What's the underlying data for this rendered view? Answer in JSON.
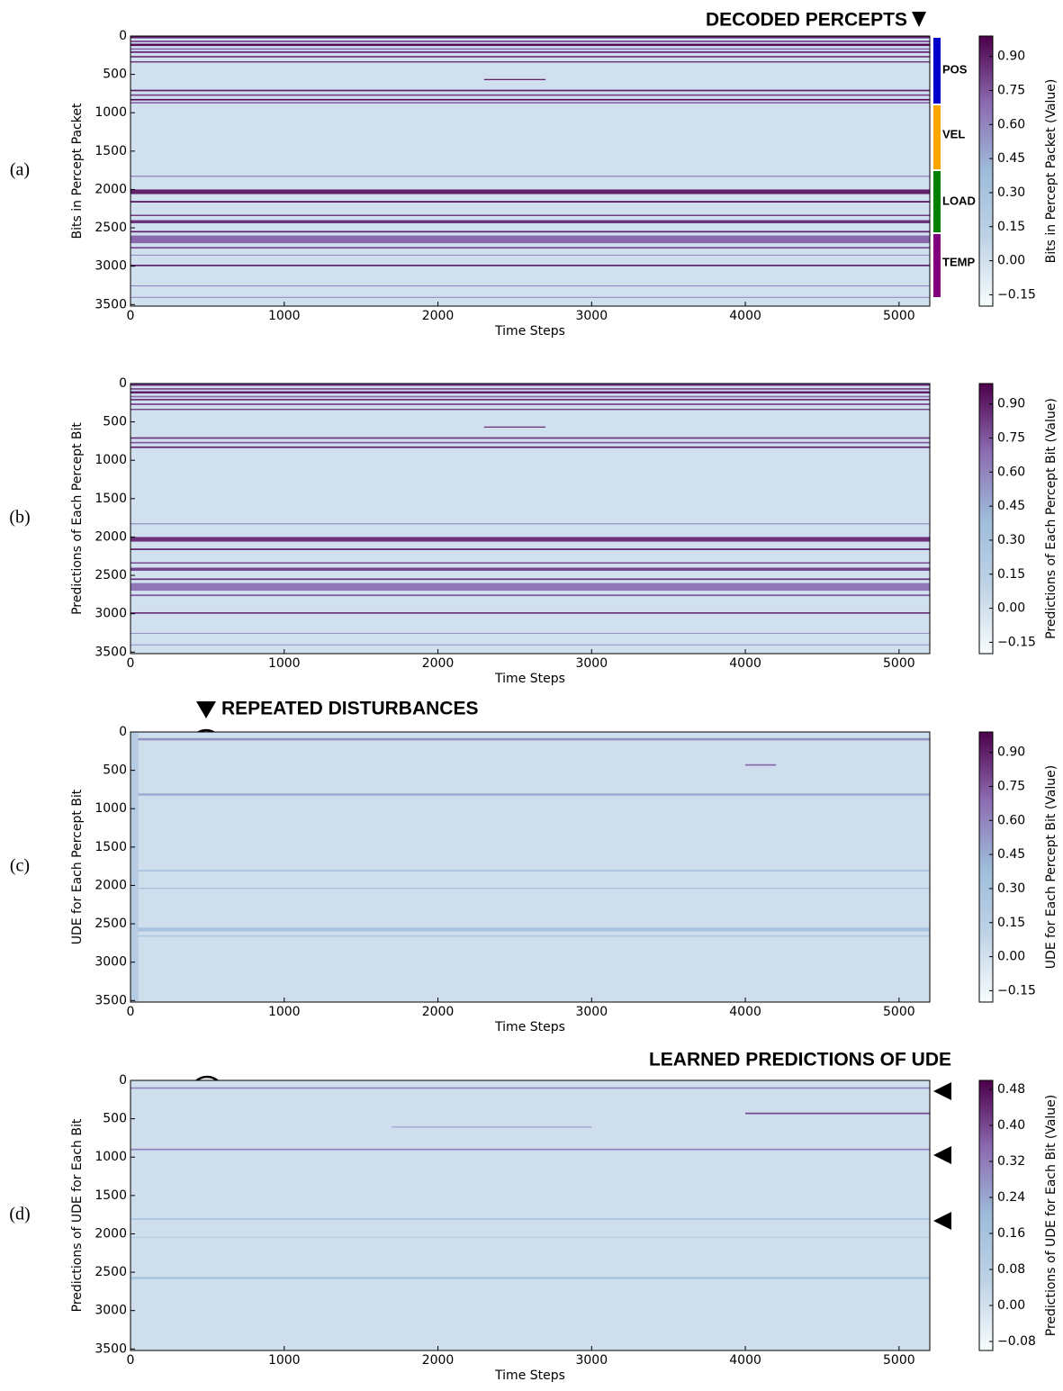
{
  "chart_data": [
    {
      "type": "heatmap",
      "panel_label": "(a)",
      "xlabel": "Time Steps",
      "ylabel": "Bits in Percept Packet",
      "colorbar_label": "Bits in Percept Packet (Value)",
      "annotation": "DECODED PERCEPTS",
      "segments": [
        "POS",
        "VEL",
        "LOAD",
        "TEMP"
      ],
      "xlim": [
        0,
        5200
      ],
      "ylim": [
        0,
        3520
      ],
      "xticks": [
        0,
        1000,
        2000,
        3000,
        4000,
        5000
      ],
      "yticks": [
        0,
        500,
        1000,
        1500,
        2000,
        2500,
        3000,
        3500
      ],
      "clim": [
        -0.2,
        0.99
      ],
      "cticks": [
        {
          "value": -0.15,
          "label": "−0.15"
        },
        {
          "value": 0,
          "label": "0.00"
        },
        {
          "value": 0.15,
          "label": "0.15"
        },
        {
          "value": 0.3,
          "label": "0.30"
        },
        {
          "value": 0.45,
          "label": "0.45"
        },
        {
          "value": 0.6,
          "label": "0.60"
        },
        {
          "value": 0.75,
          "label": "0.75"
        },
        {
          "value": 0.9,
          "label": "0.90"
        }
      ],
      "bands": [
        {
          "bits": [
            0,
            3520
          ],
          "value": 0
        },
        {
          "bits": [
            0,
            30
          ],
          "value": 0.9
        },
        {
          "bits": [
            60,
            80
          ],
          "value": 0.8
        },
        {
          "bits": [
            100,
            130
          ],
          "value": 0.95
        },
        {
          "bits": [
            160,
            180
          ],
          "value": 0.7
        },
        {
          "bits": [
            200,
            220
          ],
          "value": 0.9
        },
        {
          "bits": [
            260,
            280
          ],
          "value": 0.85
        },
        {
          "bits": [
            330,
            345
          ],
          "value": 0.9
        },
        {
          "bits": [
            560,
            575
          ],
          "value": 0.9,
          "time": [
            2300,
            2700
          ]
        },
        {
          "bits": [
            700,
            720
          ],
          "value": 0.9
        },
        {
          "bits": [
            760,
            780
          ],
          "value": 0.8
        },
        {
          "bits": [
            820,
            840
          ],
          "value": 0.95
        },
        {
          "bits": [
            860,
            880
          ],
          "value": 0.7
        },
        {
          "bits": [
            1820,
            1835
          ],
          "value": 0.6
        },
        {
          "bits": [
            2000,
            2060
          ],
          "value": 0.9
        },
        {
          "bits": [
            2150,
            2170
          ],
          "value": 0.95
        },
        {
          "bits": [
            2330,
            2345
          ],
          "value": 0.9
        },
        {
          "bits": [
            2400,
            2440
          ],
          "value": 0.85
        },
        {
          "bits": [
            2540,
            2560
          ],
          "value": 0.9
        },
        {
          "bits": [
            2600,
            2700
          ],
          "value": 0.7
        },
        {
          "bits": [
            2750,
            2770
          ],
          "value": 0.8
        },
        {
          "bits": [
            2850,
            2860
          ],
          "value": 0.6
        },
        {
          "bits": [
            2980,
            3000
          ],
          "value": 0.9
        },
        {
          "bits": [
            3250,
            3260
          ],
          "value": 0.6
        },
        {
          "bits": [
            3400,
            3410
          ],
          "value": 0.6
        }
      ]
    },
    {
      "type": "heatmap",
      "panel_label": "(b)",
      "xlabel": "Time Steps",
      "ylabel": "Predictions of Each Percept Bit",
      "colorbar_label": "Predictions of Each Percept Bit (Value)",
      "xlim": [
        0,
        5200
      ],
      "ylim": [
        0,
        3520
      ],
      "xticks": [
        0,
        1000,
        2000,
        3000,
        4000,
        5000
      ],
      "yticks": [
        0,
        500,
        1000,
        1500,
        2000,
        2500,
        3000,
        3500
      ],
      "clim": [
        -0.2,
        0.99
      ],
      "cticks": [
        {
          "value": -0.15,
          "label": "−0.15"
        },
        {
          "value": 0,
          "label": "0.00"
        },
        {
          "value": 0.15,
          "label": "0.15"
        },
        {
          "value": 0.3,
          "label": "0.30"
        },
        {
          "value": 0.45,
          "label": "0.45"
        },
        {
          "value": 0.6,
          "label": "0.60"
        },
        {
          "value": 0.75,
          "label": "0.75"
        },
        {
          "value": 0.9,
          "label": "0.90"
        }
      ],
      "bands": [
        {
          "bits": [
            0,
            3520
          ],
          "value": 0
        },
        {
          "bits": [
            0,
            30
          ],
          "value": 0.85
        },
        {
          "bits": [
            60,
            80
          ],
          "value": 0.8
        },
        {
          "bits": [
            100,
            130
          ],
          "value": 0.9
        },
        {
          "bits": [
            160,
            180
          ],
          "value": 0.7
        },
        {
          "bits": [
            200,
            220
          ],
          "value": 0.85
        },
        {
          "bits": [
            260,
            280
          ],
          "value": 0.8
        },
        {
          "bits": [
            330,
            345
          ],
          "value": 0.85
        },
        {
          "bits": [
            560,
            575
          ],
          "value": 0.85,
          "time": [
            2300,
            2700
          ]
        },
        {
          "bits": [
            700,
            720
          ],
          "value": 0.85
        },
        {
          "bits": [
            760,
            780
          ],
          "value": 0.75
        },
        {
          "bits": [
            820,
            840
          ],
          "value": 0.9
        },
        {
          "bits": [
            1820,
            1835
          ],
          "value": 0.55
        },
        {
          "bits": [
            2000,
            2060
          ],
          "value": 0.85
        },
        {
          "bits": [
            2150,
            2170
          ],
          "value": 0.9
        },
        {
          "bits": [
            2330,
            2345
          ],
          "value": 0.85
        },
        {
          "bits": [
            2400,
            2440
          ],
          "value": 0.8
        },
        {
          "bits": [
            2540,
            2560
          ],
          "value": 0.85
        },
        {
          "bits": [
            2600,
            2700
          ],
          "value": 0.65
        },
        {
          "bits": [
            2750,
            2770
          ],
          "value": 0.75
        },
        {
          "bits": [
            2980,
            3000
          ],
          "value": 0.85
        },
        {
          "bits": [
            3250,
            3260
          ],
          "value": 0.55
        },
        {
          "bits": [
            3400,
            3410
          ],
          "value": 0.55
        }
      ]
    },
    {
      "type": "heatmap",
      "panel_label": "(c)",
      "xlabel": "Time Steps",
      "ylabel": "UDE for Each Percept Bit",
      "colorbar_label": "UDE for Each Percept Bit (Value)",
      "annotation": "REPEATED DISTURBANCES",
      "xlim": [
        0,
        5200
      ],
      "ylim": [
        0,
        3520
      ],
      "xticks": [
        0,
        1000,
        2000,
        3000,
        4000,
        5000
      ],
      "yticks": [
        0,
        500,
        1000,
        1500,
        2000,
        2500,
        3000,
        3500
      ],
      "clim": [
        -0.2,
        0.99
      ],
      "cticks": [
        {
          "value": -0.15,
          "label": "−0.15"
        },
        {
          "value": 0,
          "label": "0.00"
        },
        {
          "value": 0.15,
          "label": "0.15"
        },
        {
          "value": 0.3,
          "label": "0.30"
        },
        {
          "value": 0.45,
          "label": "0.45"
        },
        {
          "value": 0.6,
          "label": "0.60"
        },
        {
          "value": 0.75,
          "label": "0.75"
        },
        {
          "value": 0.9,
          "label": "0.90"
        }
      ],
      "bands": [
        {
          "bits": [
            0,
            3520
          ],
          "value": 0.02
        },
        {
          "bits": [
            80,
            110
          ],
          "value": 0.55
        },
        {
          "bits": [
            420,
            440
          ],
          "value": 0.7,
          "time": [
            4000,
            4200
          ]
        },
        {
          "bits": [
            800,
            830
          ],
          "value": 0.45
        },
        {
          "bits": [
            1800,
            1815
          ],
          "value": 0.4
        },
        {
          "bits": [
            2030,
            2045
          ],
          "value": 0.3
        },
        {
          "bits": [
            2550,
            2600
          ],
          "value": 0.3
        },
        {
          "bits": [
            2650,
            2670
          ],
          "value": 0.25
        },
        {
          "bits": [
            0,
            3520
          ],
          "value": 0.2,
          "time": [
            0,
            50
          ]
        }
      ]
    },
    {
      "type": "heatmap",
      "panel_label": "(d)",
      "xlabel": "Time Steps",
      "ylabel": "Predictions of UDE for Each Bit",
      "colorbar_label": "Predictions of UDE for Each Bit (Value)",
      "annotation": "LEARNED PREDICTIONS OF UDE",
      "xlim": [
        0,
        5200
      ],
      "ylim": [
        0,
        3520
      ],
      "xticks": [
        0,
        1000,
        2000,
        3000,
        4000,
        5000
      ],
      "yticks": [
        0,
        500,
        1000,
        1500,
        2000,
        2500,
        3000,
        3500
      ],
      "clim": [
        -0.1,
        0.5
      ],
      "cticks": [
        {
          "value": -0.08,
          "label": "−0.08"
        },
        {
          "value": 0,
          "label": "0.00"
        },
        {
          "value": 0.08,
          "label": "0.08"
        },
        {
          "value": 0.16,
          "label": "0.16"
        },
        {
          "value": 0.24,
          "label": "0.24"
        },
        {
          "value": 0.32,
          "label": "0.32"
        },
        {
          "value": 0.4,
          "label": "0.40"
        },
        {
          "value": 0.48,
          "label": "0.48"
        }
      ],
      "bands": [
        {
          "bits": [
            0,
            3520
          ],
          "value": 0.01
        },
        {
          "bits": [
            90,
            110
          ],
          "value": 0.3
        },
        {
          "bits": [
            420,
            440
          ],
          "value": 0.4,
          "time": [
            4000,
            5200
          ]
        },
        {
          "bits": [
            600,
            615
          ],
          "value": 0.25,
          "time": [
            1700,
            3000
          ]
        },
        {
          "bits": [
            890,
            910
          ],
          "value": 0.3
        },
        {
          "bits": [
            1800,
            1815
          ],
          "value": 0.2
        },
        {
          "bits": [
            2560,
            2590
          ],
          "value": 0.15
        },
        {
          "bits": [
            2040,
            2050
          ],
          "value": 0.12
        }
      ]
    }
  ]
}
